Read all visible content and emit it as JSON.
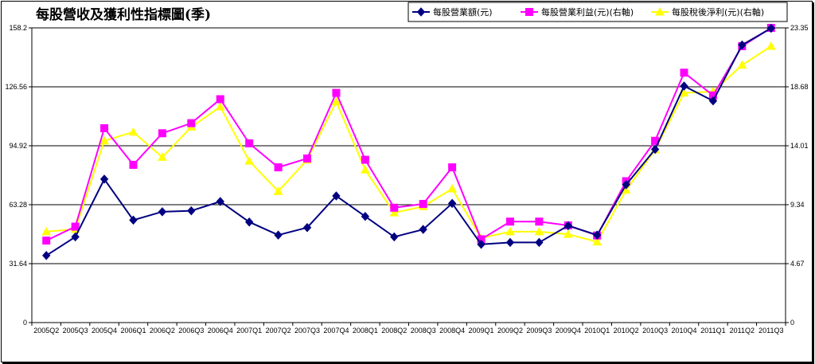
{
  "chart_data": {
    "type": "line",
    "title": "每股營收及獲利性指標圖(季)",
    "categories": [
      "2005Q2",
      "2005Q3",
      "2005Q4",
      "2006Q1",
      "2006Q2",
      "2006Q3",
      "2006Q4",
      "2007Q1",
      "2007Q2",
      "2007Q3",
      "2007Q4",
      "2008Q1",
      "2008Q2",
      "2008Q3",
      "2008Q4",
      "2009Q1",
      "2009Q2",
      "2009Q3",
      "2009Q4",
      "2010Q1",
      "2010Q2",
      "2010Q3",
      "2010Q4",
      "2011Q1",
      "2011Q2",
      "2011Q3"
    ],
    "left_axis": {
      "ticks": [
        "0",
        "31.64",
        "63.28",
        "94.92",
        "126.56",
        "158.2"
      ],
      "ylim": [
        0,
        158.2
      ]
    },
    "right_axis": {
      "ticks": [
        "0",
        "4.67",
        "9.34",
        "14.01",
        "18.68",
        "23.35"
      ],
      "ylim": [
        0,
        23.35
      ]
    },
    "grid": true,
    "legend_position": "top-right",
    "series": [
      {
        "name": "每股營業額(元)",
        "axis": "left",
        "color": "#000080",
        "marker": "diamond",
        "values": [
          36,
          46,
          77,
          55,
          59.5,
          60,
          65,
          54,
          47,
          51,
          68,
          57,
          46,
          50,
          64,
          42,
          43,
          43,
          52,
          47,
          74,
          93,
          127,
          119,
          149,
          158
        ]
      },
      {
        "name": "每股營業利益(元)(右軸)",
        "axis": "right",
        "color": "#ff00ff",
        "marker": "square",
        "values": [
          6.5,
          7.6,
          15.4,
          12.5,
          15,
          15.8,
          17.7,
          14.2,
          12.3,
          13,
          18.2,
          12.9,
          9.1,
          9.4,
          12.3,
          6.6,
          8,
          8,
          7.7,
          6.9,
          11.2,
          14.4,
          19.8,
          18,
          21.9,
          23.35
        ]
      },
      {
        "name": "每股稅後淨利(元)(右軸)",
        "axis": "right",
        "color": "#ffff00",
        "marker": "triangle",
        "values": [
          7.2,
          7.4,
          14.4,
          15.1,
          13.1,
          15.5,
          17.1,
          12.8,
          10.4,
          12.9,
          17.5,
          12.1,
          8.7,
          9.2,
          10.6,
          6.7,
          7.2,
          7.2,
          7.0,
          6.4,
          10.5,
          13.7,
          18.2,
          18.3,
          20.4,
          21.9
        ]
      }
    ]
  }
}
